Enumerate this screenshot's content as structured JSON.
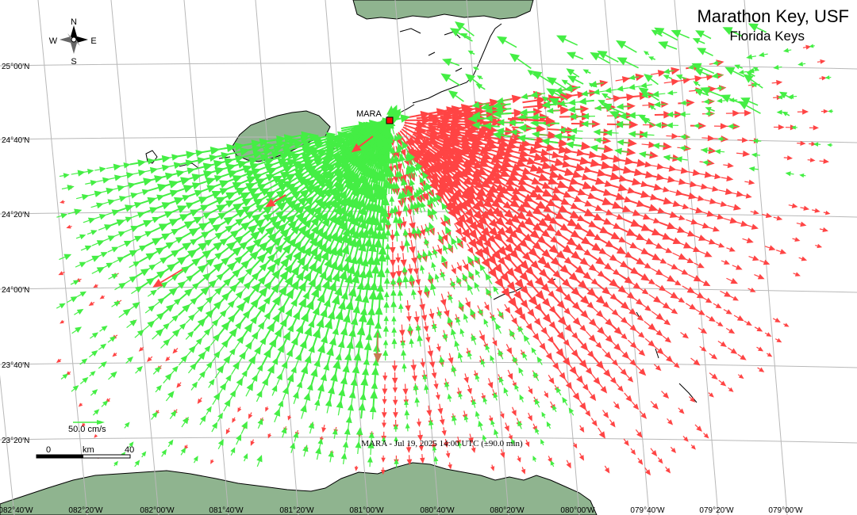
{
  "map": {
    "title": "Marathon Key, USF",
    "subtitle": "Florida Keys",
    "station_label": "MARA",
    "timestamp": "MARA - Jul 19, 2025 14:00 UTC (±90.0 min)",
    "compass": {
      "n": "N",
      "s": "S",
      "e": "E",
      "w": "W"
    },
    "vector_scale_label": "50.0 cm/s",
    "scale_bar": {
      "start": "0",
      "unit": "km",
      "end": "40"
    },
    "lat_labels": [
      "25°00'N",
      "24°40'N",
      "24°20'N",
      "24°00'N",
      "23°40'N",
      "23°20'N"
    ],
    "lon_labels": [
      "082°40'W",
      "082°20'W",
      "082°00'W",
      "081°40'W",
      "081°20'W",
      "081°00'W",
      "080°40'W",
      "080°20'W",
      "080°00'W",
      "079°40'W",
      "079°20'W",
      "079°00'W"
    ],
    "colors": {
      "land": "#8fb48f",
      "coast": "#000000",
      "grid": "#b8b8b8",
      "toward": "#44ee44",
      "away": "#ff4444",
      "station": "#ff0000"
    }
  }
}
